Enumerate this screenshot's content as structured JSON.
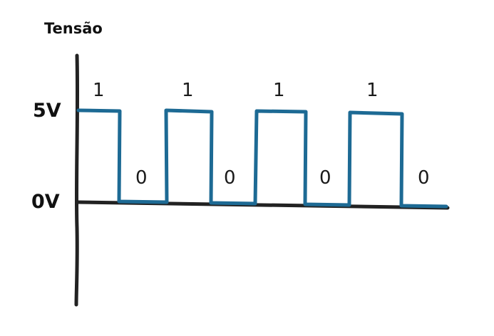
{
  "axis_title": "Tensão",
  "levels": {
    "high": "5V",
    "low": "0V"
  },
  "bits": [
    "1",
    "0",
    "1",
    "0",
    "1",
    "0",
    "1",
    "0"
  ],
  "colors": {
    "signal": "#1d6a94",
    "axis": "#222222",
    "text": "#111111"
  }
}
